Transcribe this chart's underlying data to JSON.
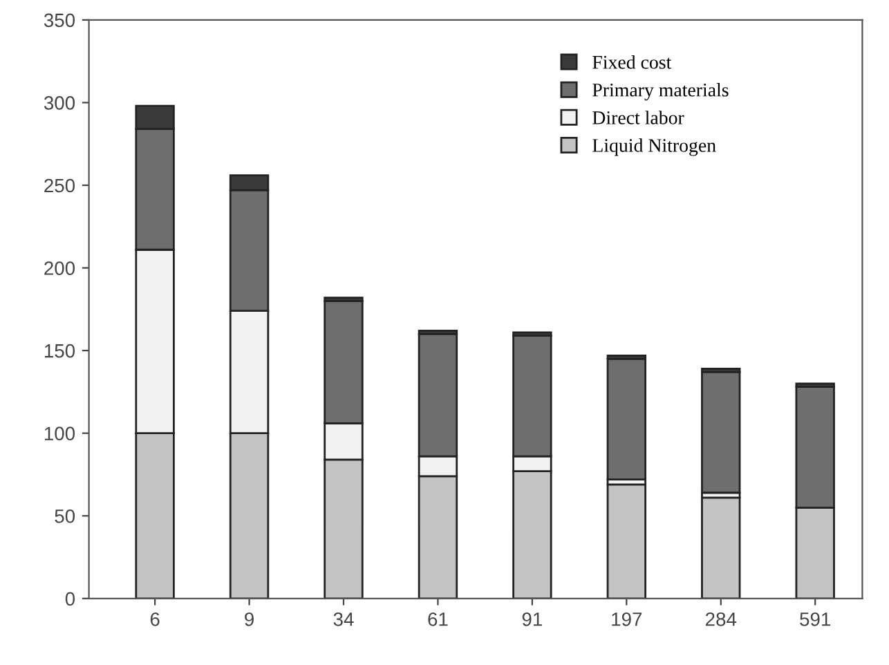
{
  "chart_data": {
    "type": "bar",
    "stacked": true,
    "categories": [
      "6",
      "9",
      "34",
      "61",
      "91",
      "197",
      "284",
      "591"
    ],
    "series": [
      {
        "name": "Liquid Nitrogen",
        "color": "#c4c4c4",
        "values": [
          100,
          100,
          84,
          74,
          77,
          69,
          61,
          55
        ]
      },
      {
        "name": "Direct labor",
        "color": "#f2f2f2",
        "values": [
          111,
          74,
          22,
          12,
          9,
          3,
          3,
          null
        ]
      },
      {
        "name": "Primary materials",
        "color": "#6e6e6e",
        "values": [
          73,
          73,
          74,
          74,
          73,
          73,
          73,
          73
        ]
      },
      {
        "name": "Fixed cost",
        "color": "#3a3a3a",
        "values": [
          14,
          9,
          2,
          2,
          2,
          2,
          2,
          2
        ]
      }
    ],
    "ylim": [
      0,
      350
    ],
    "yticks": [
      0,
      50,
      100,
      150,
      200,
      250,
      300,
      350
    ],
    "grid": false,
    "legend": "top right"
  }
}
